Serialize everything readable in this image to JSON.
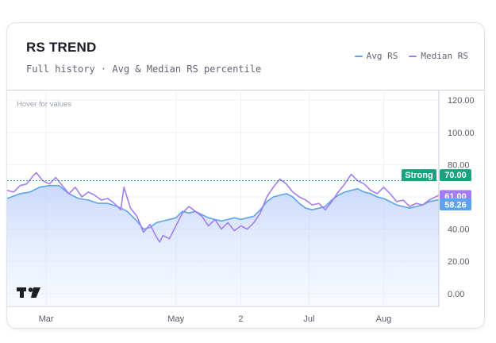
{
  "card": {
    "title": "RS TREND",
    "subtitle": "Full history · Avg & Median RS percentile"
  },
  "legend": [
    {
      "label": "Avg RS",
      "color": "#5ba3ec"
    },
    {
      "label": "Median RS",
      "color": "#a37cf0"
    }
  ],
  "hover_hint": "Hover for values",
  "chart_data": {
    "type": "line",
    "y_axis_labels": [
      "120.00",
      "100.00",
      "80.00",
      "60.00",
      "40.00",
      "20.00",
      "0.00"
    ],
    "ylim": [
      -8,
      125
    ],
    "xlim": [
      0,
      133
    ],
    "x_tick_labels": [
      {
        "label": "Mar",
        "x": 12
      },
      {
        "label": "May",
        "x": 52
      },
      {
        "label": "2",
        "x": 72
      },
      {
        "label": "Jul",
        "x": 93
      },
      {
        "label": "Aug",
        "x": 116
      }
    ],
    "threshold": {
      "label": "Strong",
      "value": "70.00",
      "y": 70,
      "color": "#16a37e"
    },
    "last_values": [
      {
        "series": "Median RS",
        "value": "61.00",
        "y": 61,
        "color": "#a37cf0"
      },
      {
        "series": "Avg RS",
        "value": "58.26",
        "y": 58.26,
        "color": "#5ba3ec"
      }
    ],
    "grid": true,
    "series": [
      {
        "name": "Avg RS",
        "color": "#5ba3ec",
        "points": [
          [
            0,
            59
          ],
          [
            4,
            62
          ],
          [
            7,
            63
          ],
          [
            10,
            66
          ],
          [
            13,
            67
          ],
          [
            16,
            67
          ],
          [
            19,
            62
          ],
          [
            22,
            59
          ],
          [
            25,
            58
          ],
          [
            28,
            56
          ],
          [
            31,
            56
          ],
          [
            34,
            54
          ],
          [
            37,
            51
          ],
          [
            40,
            45
          ],
          [
            42,
            40
          ],
          [
            44,
            41
          ],
          [
            46,
            44
          ],
          [
            48,
            45
          ],
          [
            50,
            46
          ],
          [
            52,
            47
          ],
          [
            54,
            51
          ],
          [
            56,
            50
          ],
          [
            58,
            51
          ],
          [
            60,
            49
          ],
          [
            62,
            47
          ],
          [
            64,
            46
          ],
          [
            66,
            45
          ],
          [
            68,
            46
          ],
          [
            70,
            47
          ],
          [
            72,
            46
          ],
          [
            74,
            47
          ],
          [
            76,
            48
          ],
          [
            78,
            52
          ],
          [
            80,
            57
          ],
          [
            82,
            60
          ],
          [
            84,
            61
          ],
          [
            86,
            62
          ],
          [
            88,
            60
          ],
          [
            90,
            56
          ],
          [
            92,
            53
          ],
          [
            94,
            52
          ],
          [
            96,
            53
          ],
          [
            98,
            54
          ],
          [
            100,
            58
          ],
          [
            102,
            61
          ],
          [
            104,
            63
          ],
          [
            106,
            64
          ],
          [
            108,
            65
          ],
          [
            110,
            63
          ],
          [
            112,
            62
          ],
          [
            114,
            60
          ],
          [
            116,
            59
          ],
          [
            118,
            57
          ],
          [
            120,
            55
          ],
          [
            122,
            54
          ],
          [
            124,
            53
          ],
          [
            126,
            54
          ],
          [
            128,
            55
          ],
          [
            130,
            57
          ],
          [
            133,
            58.26
          ]
        ]
      },
      {
        "name": "Median RS",
        "color": "#a37cf0",
        "points": [
          [
            0,
            64
          ],
          [
            2,
            63
          ],
          [
            4,
            67
          ],
          [
            6,
            68
          ],
          [
            8,
            73
          ],
          [
            9,
            75
          ],
          [
            11,
            70
          ],
          [
            13,
            68
          ],
          [
            15,
            72
          ],
          [
            17,
            67
          ],
          [
            19,
            62
          ],
          [
            21,
            66
          ],
          [
            23,
            60
          ],
          [
            25,
            63
          ],
          [
            27,
            61
          ],
          [
            29,
            58
          ],
          [
            31,
            59
          ],
          [
            33,
            56
          ],
          [
            35,
            52
          ],
          [
            36,
            66
          ],
          [
            38,
            53
          ],
          [
            40,
            48
          ],
          [
            42,
            38
          ],
          [
            44,
            43
          ],
          [
            46,
            35
          ],
          [
            47,
            32
          ],
          [
            48,
            36
          ],
          [
            50,
            34
          ],
          [
            52,
            42
          ],
          [
            54,
            50
          ],
          [
            56,
            54
          ],
          [
            58,
            51
          ],
          [
            60,
            48
          ],
          [
            62,
            42
          ],
          [
            64,
            46
          ],
          [
            66,
            40
          ],
          [
            68,
            44
          ],
          [
            70,
            39
          ],
          [
            72,
            42
          ],
          [
            74,
            40
          ],
          [
            76,
            44
          ],
          [
            78,
            50
          ],
          [
            80,
            60
          ],
          [
            82,
            66
          ],
          [
            84,
            71
          ],
          [
            86,
            68
          ],
          [
            88,
            63
          ],
          [
            90,
            60
          ],
          [
            92,
            58
          ],
          [
            94,
            55
          ],
          [
            96,
            56
          ],
          [
            98,
            52
          ],
          [
            100,
            57
          ],
          [
            102,
            63
          ],
          [
            104,
            68
          ],
          [
            106,
            74
          ],
          [
            108,
            70
          ],
          [
            110,
            68
          ],
          [
            112,
            64
          ],
          [
            114,
            62
          ],
          [
            116,
            66
          ],
          [
            118,
            62
          ],
          [
            120,
            57
          ],
          [
            122,
            58
          ],
          [
            124,
            54
          ],
          [
            126,
            56
          ],
          [
            128,
            55
          ],
          [
            130,
            58
          ],
          [
            133,
            61
          ]
        ]
      }
    ]
  }
}
